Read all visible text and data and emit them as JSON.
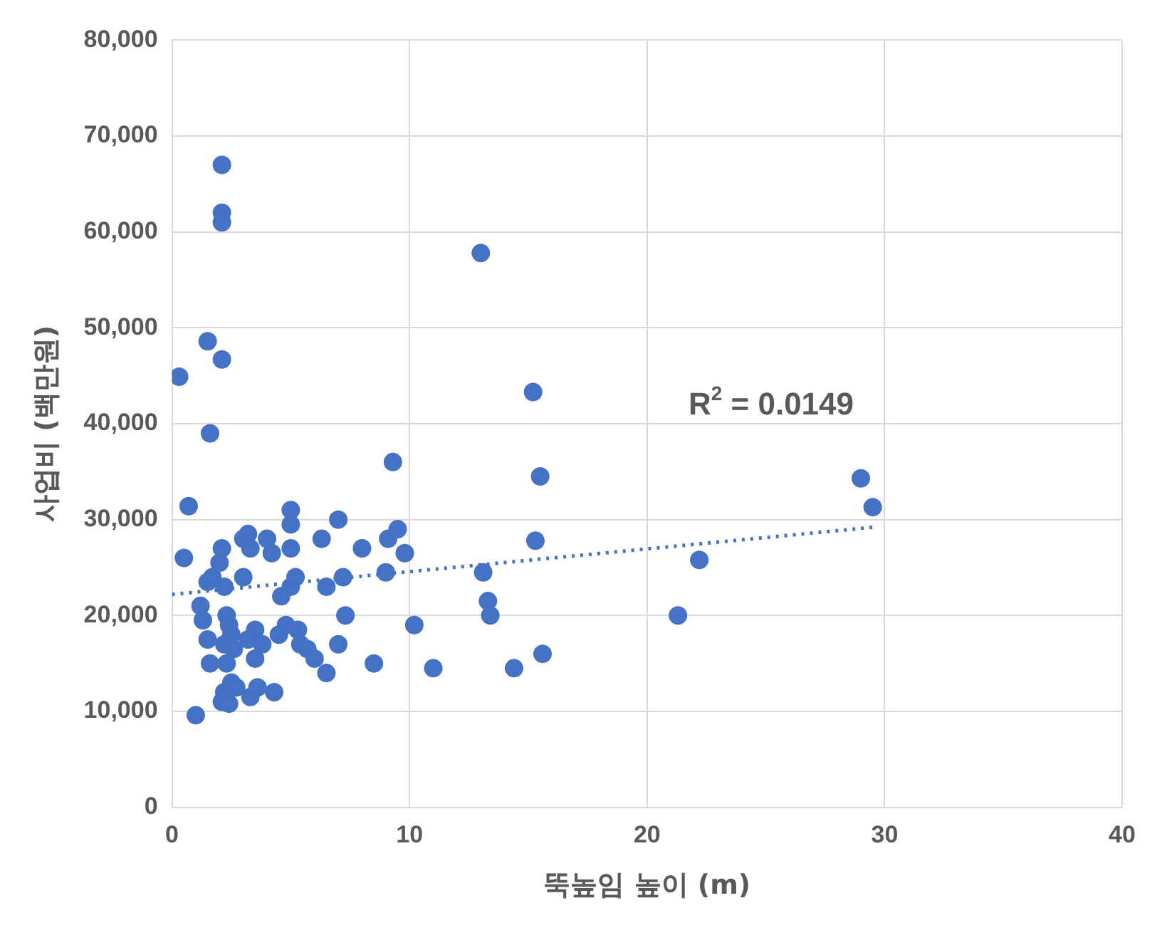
{
  "chart_data": {
    "type": "scatter",
    "xlabel": "뚝높임 높이 (m)",
    "ylabel": "사업비 (백만원)",
    "annotations": [
      "R$^{2}$ = 0.0149"
    ],
    "xlim": [
      0,
      40
    ],
    "xticks": [
      0,
      10,
      20,
      30,
      40
    ],
    "ylim": [
      0,
      80000
    ],
    "yticks": [
      {
        "value": 0,
        "label": "0"
      },
      {
        "value": 10000,
        "label": "10,000"
      },
      {
        "value": 20000,
        "label": "20,000"
      },
      {
        "value": 30000,
        "label": "30,000"
      },
      {
        "value": 40000,
        "label": "40,000"
      },
      {
        "value": 50000,
        "label": "50,000"
      },
      {
        "value": 60000,
        "label": "60,000"
      },
      {
        "value": 70000,
        "label": "70,000"
      },
      {
        "value": 80000,
        "label": "80,000"
      }
    ],
    "grid": true,
    "legend": false,
    "marker": "circle",
    "series": [
      {
        "type": "scatter",
        "color": "#4472c4",
        "x": [
          0.3,
          0.7,
          0.5,
          1.0,
          1.5,
          1.6,
          2.1,
          2.1,
          2.1,
          2.1,
          1.2,
          1.3,
          1.5,
          1.7,
          1.5,
          1.6,
          2.0,
          2.1,
          2.2,
          2.3,
          2.4,
          2.5,
          2.2,
          2.6,
          2.3,
          2.5,
          2.2,
          2.1,
          2.4,
          2.7,
          3.0,
          3.2,
          3.0,
          3.3,
          3.5,
          3.2,
          3.8,
          3.5,
          3.3,
          3.6,
          4.0,
          4.5,
          4.8,
          4.3,
          4.6,
          5.0,
          5.0,
          5.0,
          5.2,
          5.0,
          4.2,
          5.4,
          5.7,
          5.3,
          6.0,
          6.3,
          6.5,
          6.5,
          7.0,
          7.0,
          7.2,
          7.3,
          8.0,
          8.5,
          9.0,
          9.1,
          9.3,
          9.5,
          9.8,
          10.2,
          11.0,
          13.0,
          13.1,
          13.3,
          13.4,
          14.4,
          15.2,
          15.3,
          15.5,
          15.6,
          21.3,
          22.2,
          29.0,
          29.5
        ],
        "values": [
          44900,
          31400,
          26000,
          9600,
          48600,
          39000,
          46700,
          67000,
          62000,
          61000,
          21000,
          19500,
          23500,
          24000,
          17500,
          15000,
          25500,
          27000,
          23000,
          20000,
          19000,
          18000,
          17000,
          16500,
          15000,
          13000,
          12000,
          11000,
          10800,
          12500,
          28000,
          28500,
          24000,
          27000,
          18500,
          17500,
          17000,
          15500,
          11500,
          12500,
          28000,
          18000,
          19000,
          12000,
          22000,
          23000,
          31000,
          29500,
          24000,
          27000,
          26500,
          17000,
          16500,
          18500,
          15500,
          28000,
          14000,
          23000,
          30000,
          17000,
          24000,
          20000,
          27000,
          15000,
          24500,
          28000,
          36000,
          29000,
          26500,
          19000,
          14500,
          57800,
          24500,
          21500,
          20000,
          14500,
          43300,
          27800,
          34500,
          16000,
          20000,
          25800,
          34300,
          31300
        ]
      },
      {
        "type": "line",
        "color": "#4472c4",
        "line_style": "dotted",
        "marker": "none",
        "x": [
          0,
          29.5
        ],
        "values": [
          22200,
          29200
        ]
      }
    ]
  }
}
